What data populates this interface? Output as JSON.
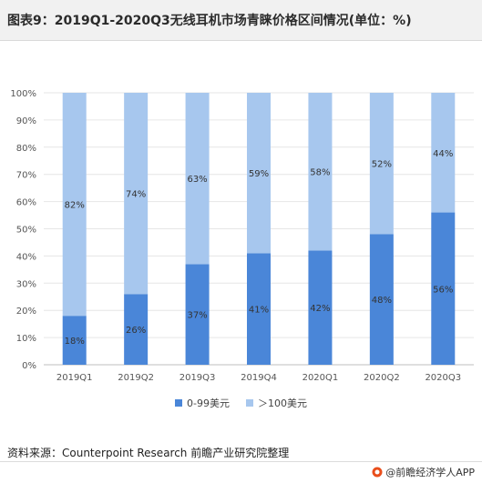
{
  "header": {
    "title": "图表9：2019Q1-2020Q3无线耳机市场青睐价格区间情况(单位：%)"
  },
  "footer": {
    "source": "资料来源：Counterpoint Research 前瞻产业研究院整理",
    "brand": "@前瞻经济学人APP"
  },
  "colors": {
    "low": "#4a86d8",
    "high": "#a7c7ee",
    "grid": "#e6e6e6",
    "axis": "#bfbfbf"
  },
  "chart_data": {
    "type": "bar",
    "stacked": true,
    "percent": true,
    "categories": [
      "2019Q1",
      "2019Q2",
      "2019Q3",
      "2019Q4",
      "2020Q1",
      "2020Q2",
      "2020Q3"
    ],
    "series": [
      {
        "name": "0-99美元",
        "values": [
          18,
          26,
          37,
          41,
          42,
          48,
          56
        ]
      },
      {
        "name": "＞100美元",
        "values": [
          82,
          74,
          63,
          59,
          58,
          52,
          44
        ]
      }
    ],
    "data_labels": [
      [
        "18%",
        "26%",
        "37%",
        "41%",
        "42%",
        "48%",
        "56%"
      ],
      [
        "82%",
        "74%",
        "63%",
        "59%",
        "58%",
        "52%",
        "44%"
      ]
    ],
    "ylim": [
      0,
      100
    ],
    "yticks": [
      "0%",
      "10%",
      "20%",
      "30%",
      "40%",
      "50%",
      "60%",
      "70%",
      "80%",
      "90%",
      "100%"
    ],
    "legend_position": "bottom",
    "grid": true
  }
}
